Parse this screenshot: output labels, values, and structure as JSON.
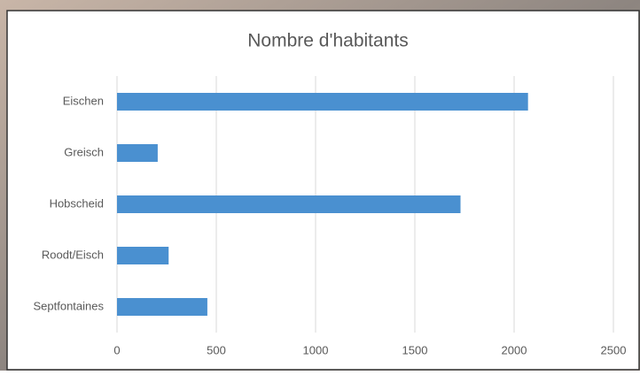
{
  "chart_data": {
    "type": "bar",
    "orientation": "horizontal",
    "title": "Nombre d'habitants",
    "categories": [
      "Eischen",
      "Greisch",
      "Hobscheid",
      "Roodt/Eisch",
      "Septfontaines"
    ],
    "values": [
      2070,
      205,
      1730,
      260,
      455
    ],
    "color": "#4a90d0",
    "xlim": [
      0,
      2500
    ],
    "xticks": [
      0,
      500,
      1000,
      1500,
      2000,
      2500
    ],
    "grid": true
  }
}
